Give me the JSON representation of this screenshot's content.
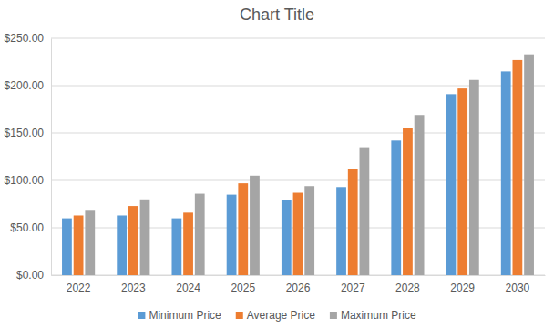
{
  "chart_data": {
    "type": "bar",
    "title": "Chart Title",
    "categories": [
      "2022",
      "2023",
      "2024",
      "2025",
      "2026",
      "2027",
      "2028",
      "2029",
      "2030"
    ],
    "series": [
      {
        "name": "Minimum Price",
        "color": "#5b9bd5",
        "values": [
          60,
          63,
          60,
          85,
          79,
          93,
          142,
          191,
          215
        ]
      },
      {
        "name": "Average Price",
        "color": "#ed7d31",
        "values": [
          63,
          73,
          66,
          97,
          87,
          112,
          155,
          197,
          227
        ]
      },
      {
        "name": "Maximum Price",
        "color": "#a5a5a5",
        "values": [
          68,
          80,
          86,
          105,
          94,
          135,
          169,
          206,
          233
        ]
      }
    ],
    "ylim": [
      0,
      250
    ],
    "yticks": [
      {
        "value": 0,
        "label": "$0.00"
      },
      {
        "value": 50,
        "label": "$50.00"
      },
      {
        "value": 100,
        "label": "$100.00"
      },
      {
        "value": 150,
        "label": "$150.00"
      },
      {
        "value": 200,
        "label": "$200.00"
      },
      {
        "value": 250,
        "label": "$250.00"
      }
    ],
    "grid": true,
    "legend": "bottom"
  }
}
